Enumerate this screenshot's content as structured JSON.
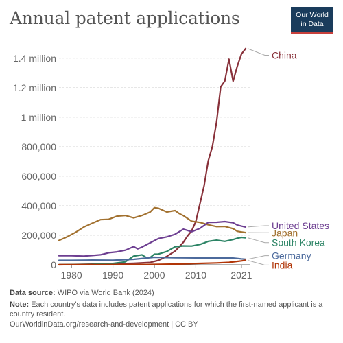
{
  "header": {
    "title": "Annual patent applications",
    "logo_line1": "Our World",
    "logo_line2": "in Data"
  },
  "footer": {
    "source_label": "Data source:",
    "source_text": "WIPO via World Bank (2024)",
    "note_label": "Note:",
    "note_text": "Each country's data includes patent applications for which the first-named applicant is a country resident.",
    "credit": "OurWorldinData.org/research-and-development | CC BY"
  },
  "colors": {
    "China": "#883039",
    "Japan": "#a2712f",
    "United States": "#6d3e91",
    "South Korea": "#2c8465",
    "Germany": "#4c6a9c",
    "India": "#b13507",
    "grid": "#dddddd",
    "axis": "#666666",
    "tick_text": "#666666"
  },
  "chart_data": {
    "type": "line",
    "title": "Annual patent applications",
    "xlim": [
      1977,
      2023
    ],
    "ylim": [
      0,
      1450000
    ],
    "x_ticks": [
      1980,
      1990,
      2000,
      2010,
      2021
    ],
    "x_tick_labels": [
      "1980",
      "1990",
      "2000",
      "2010",
      "2021"
    ],
    "y_ticks": [
      0,
      200000,
      400000,
      600000,
      800000,
      1000000,
      1200000,
      1400000
    ],
    "y_tick_labels": [
      "0",
      "200,000",
      "400,000",
      "600,000",
      "800,000",
      "1 million",
      "1.2 million",
      "1.4 million"
    ],
    "grid": true,
    "legend": "right-end labels",
    "series": [
      {
        "name": "China",
        "label_y": 1420000,
        "x": [
          1977,
          1985,
          1990,
          1995,
          1999,
          2001,
          2003,
          2005,
          2006,
          2007,
          2008,
          2009,
          2010,
          2011,
          2012,
          2013,
          2014,
          2015,
          2016,
          2017,
          2018,
          2019,
          2020,
          2021,
          2022
        ],
        "y": [
          0,
          4000,
          6000,
          10000,
          16000,
          30000,
          57000,
          93000,
          122000,
          153000,
          195000,
          230000,
          293000,
          415000,
          535000,
          705000,
          801000,
          968000,
          1205000,
          1245000,
          1393000,
          1244000,
          1345000,
          1427000,
          1465000
        ]
      },
      {
        "name": "Japan",
        "label_y": 217000,
        "x": [
          1977,
          1979,
          1981,
          1983,
          1985,
          1987,
          1989,
          1991,
          1993,
          1995,
          1997,
          1999,
          2000,
          2001,
          2003,
          2005,
          2006,
          2007,
          2009,
          2011,
          2013,
          2015,
          2017,
          2019,
          2020,
          2021,
          2022
        ],
        "y": [
          165000,
          190000,
          220000,
          256000,
          281000,
          306000,
          308000,
          330000,
          334000,
          318000,
          334000,
          358000,
          387000,
          383000,
          358000,
          367000,
          347000,
          333000,
          295000,
          287000,
          271000,
          259000,
          260000,
          245000,
          227000,
          222000,
          218000
        ]
      },
      {
        "name": "United States",
        "label_y": 265000,
        "x": [
          1977,
          1980,
          1983,
          1985,
          1987,
          1989,
          1991,
          1993,
          1995,
          1996,
          1997,
          1999,
          2001,
          2003,
          2005,
          2007,
          2009,
          2011,
          2013,
          2015,
          2017,
          2019,
          2020,
          2021,
          2022
        ],
        "y": [
          62000,
          62000,
          59000,
          63000,
          68000,
          82000,
          88000,
          99000,
          123000,
          108000,
          120000,
          149000,
          178000,
          189000,
          207000,
          241000,
          224000,
          247000,
          287000,
          288000,
          293000,
          285000,
          269000,
          262000,
          256000
        ]
      },
      {
        "name": "South Korea",
        "label_y": 150000,
        "x": [
          1977,
          1980,
          1985,
          1990,
          1993,
          1995,
          1997,
          1998,
          1999,
          2000,
          2001,
          2003,
          2005,
          2006,
          2007,
          2009,
          2011,
          2012,
          2013,
          2015,
          2017,
          2019,
          2020,
          2021,
          2022
        ],
        "y": [
          1000,
          1500,
          2700,
          9000,
          20000,
          59000,
          68000,
          50000,
          50000,
          72000,
          73000,
          90000,
          122000,
          125000,
          128000,
          127000,
          138000,
          148000,
          159000,
          167000,
          159000,
          171000,
          180000,
          186000,
          183000
        ]
      },
      {
        "name": "Germany",
        "label_y": 62000,
        "x": [
          1977,
          1980,
          1985,
          1990,
          1995,
          2000,
          2005,
          2010,
          2015,
          2019,
          2020,
          2021,
          2022
        ],
        "y": [
          30000,
          30000,
          32000,
          31000,
          37000,
          51000,
          48000,
          47000,
          47000,
          46000,
          43000,
          40000,
          38000
        ]
      },
      {
        "name": "India",
        "label_y": -2000,
        "x": [
          1977,
          1985,
          1990,
          1995,
          2000,
          2005,
          2010,
          2015,
          2018,
          2020,
          2021,
          2022
        ],
        "y": [
          1000,
          1000,
          1200,
          1500,
          2200,
          4500,
          8800,
          12600,
          16300,
          23100,
          26300,
          30500
        ]
      }
    ]
  }
}
